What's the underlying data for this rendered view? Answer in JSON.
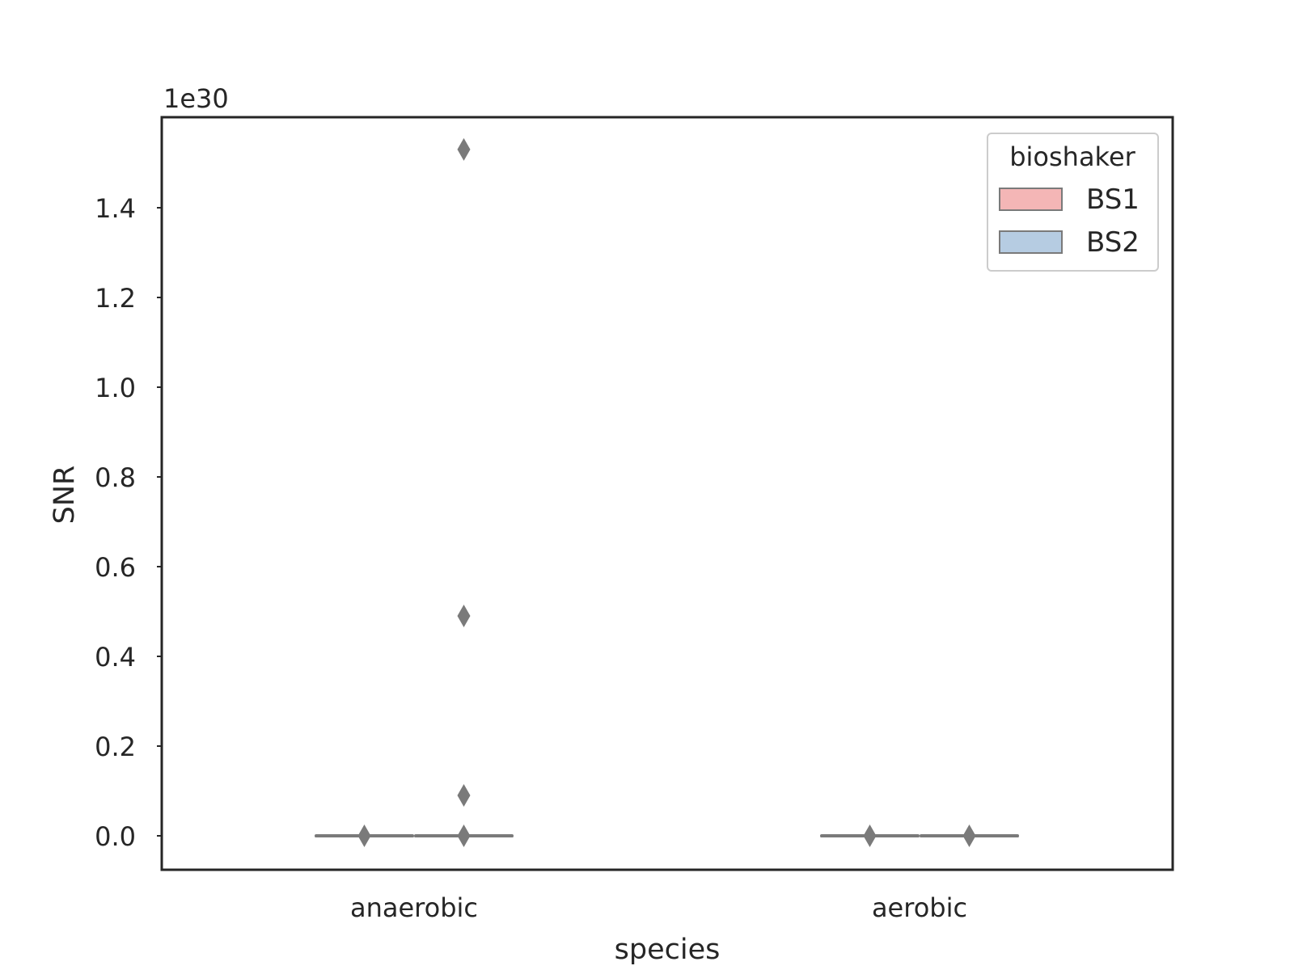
{
  "chart_data": {
    "type": "box",
    "xlabel": "species",
    "ylabel": "SNR",
    "offset_text": "1e30",
    "ylim": [
      -0.075,
      1.6
    ],
    "yticks": [
      "0.0",
      "0.2",
      "0.4",
      "0.6",
      "0.8",
      "1.0",
      "1.2",
      "1.4"
    ],
    "ytick_values": [
      0.0,
      0.2,
      0.4,
      0.6,
      0.8,
      1.0,
      1.2,
      1.4
    ],
    "categories": [
      "anaerobic",
      "aerobic"
    ],
    "grid": false,
    "legend": {
      "title": "bioshaker",
      "placement": "top-right",
      "entries": [
        {
          "label": "BS1",
          "color": "#f4b6b6"
        },
        {
          "label": "BS2",
          "color": "#b6cce2"
        }
      ]
    },
    "series": [
      {
        "name": "BS1",
        "color": "#f4b6b6",
        "boxes": [
          {
            "category": "anaerobic",
            "median": 0.0,
            "q1": 0.0,
            "q3": 0.0,
            "whisker_low": 0.0,
            "whisker_high": 0.0,
            "outliers": [
              0.0
            ]
          },
          {
            "category": "aerobic",
            "median": 0.0,
            "q1": 0.0,
            "q3": 0.0,
            "whisker_low": 0.0,
            "whisker_high": 0.0,
            "outliers": [
              0.0
            ]
          }
        ]
      },
      {
        "name": "BS2",
        "color": "#b6cce2",
        "boxes": [
          {
            "category": "anaerobic",
            "median": 0.0,
            "q1": 0.0,
            "q3": 0.0,
            "whisker_low": 0.0,
            "whisker_high": 0.0,
            "outliers": [
              0.0,
              0.09,
              0.49,
              1.53
            ]
          },
          {
            "category": "aerobic",
            "median": 0.0,
            "q1": 0.0,
            "q3": 0.0,
            "whisker_low": 0.0,
            "whisker_high": 0.0,
            "outliers": [
              0.0
            ]
          }
        ]
      }
    ],
    "colors": {
      "frame": "#262626",
      "box_edge": "#7a7a7a",
      "outlier": "#7a7a7a",
      "legend_border": "#cccccc"
    }
  }
}
